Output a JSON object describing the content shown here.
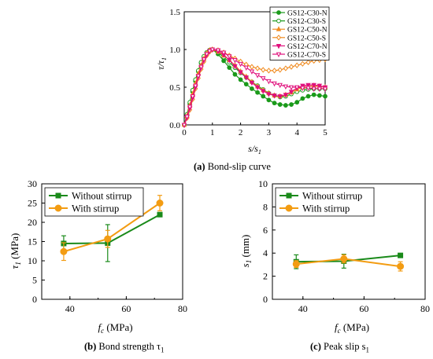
{
  "figure_a": {
    "caption_tag": "(a)",
    "caption_text": "Bond-slip curve"
  },
  "figure_b": {
    "caption_tag": "(b)",
    "caption_text": "Bond strength τ",
    "caption_sub": "1"
  },
  "figure_c": {
    "caption_tag": "(c)",
    "caption_text": "Peak slip s",
    "caption_sub": "1"
  },
  "chart_data": [
    {
      "type": "line",
      "xlabel": "s/s1",
      "ylabel": "τ/τ1",
      "xlim": [
        0,
        5
      ],
      "ylim": [
        0,
        1.5
      ],
      "xticks": [
        "0",
        "1",
        "2",
        "3",
        "4",
        "5"
      ],
      "yticks": [
        "0.0",
        "0.5",
        "1.0",
        "1.5"
      ],
      "legend_position": "top-right",
      "series": [
        {
          "name": "GS12-C30-N",
          "color": "#1a9a1a",
          "marker": "circle-filled",
          "x": [
            0,
            0.1,
            0.2,
            0.3,
            0.4,
            0.5,
            0.6,
            0.7,
            0.8,
            0.9,
            1.0,
            1.2,
            1.4,
            1.6,
            1.8,
            2.0,
            2.2,
            2.4,
            2.6,
            2.8,
            3.0,
            3.2,
            3.4,
            3.6,
            3.8,
            4.0,
            4.2,
            4.4,
            4.6,
            4.8,
            5.0
          ],
          "y": [
            0,
            0.13,
            0.28,
            0.44,
            0.58,
            0.71,
            0.82,
            0.9,
            0.96,
            0.99,
            1.0,
            0.94,
            0.85,
            0.76,
            0.67,
            0.6,
            0.54,
            0.48,
            0.43,
            0.38,
            0.33,
            0.29,
            0.27,
            0.26,
            0.27,
            0.3,
            0.35,
            0.38,
            0.4,
            0.39,
            0.38
          ]
        },
        {
          "name": "GS12-C30-S",
          "color": "#1a9a1a",
          "marker": "circle-open",
          "x": [
            0,
            0.1,
            0.2,
            0.3,
            0.4,
            0.5,
            0.6,
            0.7,
            0.8,
            0.9,
            1.0,
            1.2,
            1.4,
            1.6,
            1.8,
            2.0,
            2.2,
            2.4,
            2.6,
            2.8,
            3.0,
            3.2,
            3.4,
            3.6,
            3.8,
            4.0,
            4.2,
            4.4,
            4.6,
            4.8,
            5.0
          ],
          "y": [
            0,
            0.14,
            0.3,
            0.46,
            0.6,
            0.72,
            0.83,
            0.91,
            0.96,
            0.99,
            1.0,
            0.96,
            0.9,
            0.83,
            0.76,
            0.69,
            0.63,
            0.57,
            0.52,
            0.47,
            0.42,
            0.39,
            0.37,
            0.38,
            0.41,
            0.44,
            0.46,
            0.47,
            0.48,
            0.48,
            0.48
          ]
        },
        {
          "name": "GS12-C50-N",
          "color": "#f08a1e",
          "marker": "triangle-up-filled",
          "x": [
            0,
            0.1,
            0.2,
            0.3,
            0.4,
            0.5,
            0.6,
            0.7,
            0.8,
            0.9,
            1.0,
            1.2,
            1.4,
            1.6,
            1.8,
            2.0,
            2.2,
            2.4,
            2.6,
            2.8,
            3.0,
            3.2,
            3.4,
            3.6,
            3.8,
            4.0,
            4.2,
            4.4,
            4.6,
            4.8,
            5.0
          ],
          "y": [
            0,
            0.12,
            0.26,
            0.41,
            0.55,
            0.68,
            0.79,
            0.88,
            0.95,
            0.99,
            1.0,
            0.97,
            0.92,
            0.86,
            0.79,
            0.71,
            0.64,
            0.57,
            0.51,
            0.46,
            0.42,
            0.39,
            0.38,
            0.4,
            0.43,
            0.47,
            0.5,
            0.51,
            0.52,
            0.51,
            0.5
          ]
        },
        {
          "name": "GS12-C50-S",
          "color": "#f08a1e",
          "marker": "diamond-open",
          "x": [
            0,
            0.1,
            0.2,
            0.3,
            0.4,
            0.5,
            0.6,
            0.7,
            0.8,
            0.9,
            1.0,
            1.2,
            1.4,
            1.6,
            1.8,
            2.0,
            2.2,
            2.4,
            2.6,
            2.8,
            3.0,
            3.2,
            3.4,
            3.6,
            3.8,
            4.0,
            4.2,
            4.4,
            4.6,
            4.8,
            5.0
          ],
          "y": [
            0,
            0.09,
            0.2,
            0.34,
            0.48,
            0.62,
            0.74,
            0.84,
            0.92,
            0.97,
            1.0,
            0.99,
            0.96,
            0.92,
            0.88,
            0.84,
            0.8,
            0.77,
            0.75,
            0.73,
            0.72,
            0.72,
            0.73,
            0.75,
            0.77,
            0.79,
            0.81,
            0.83,
            0.85,
            0.86,
            0.87
          ]
        },
        {
          "name": "GS12-C70-N",
          "color": "#e0107c",
          "marker": "triangle-down-filled",
          "x": [
            0,
            0.1,
            0.2,
            0.3,
            0.4,
            0.5,
            0.6,
            0.7,
            0.8,
            0.9,
            1.0,
            1.2,
            1.4,
            1.6,
            1.8,
            2.0,
            2.2,
            2.4,
            2.6,
            2.8,
            3.0,
            3.2,
            3.4,
            3.6,
            3.8,
            4.0,
            4.2,
            4.4,
            4.6,
            4.8,
            5.0
          ],
          "y": [
            0,
            0.1,
            0.22,
            0.36,
            0.5,
            0.64,
            0.76,
            0.86,
            0.93,
            0.98,
            1.0,
            0.98,
            0.93,
            0.86,
            0.78,
            0.7,
            0.63,
            0.56,
            0.5,
            0.45,
            0.41,
            0.39,
            0.38,
            0.4,
            0.44,
            0.49,
            0.52,
            0.53,
            0.53,
            0.52,
            0.5
          ]
        },
        {
          "name": "GS12-C70-S",
          "color": "#e0107c",
          "marker": "triangle-down-open",
          "x": [
            0,
            0.1,
            0.2,
            0.3,
            0.4,
            0.5,
            0.6,
            0.7,
            0.8,
            0.9,
            1.0,
            1.2,
            1.4,
            1.6,
            1.8,
            2.0,
            2.2,
            2.4,
            2.6,
            2.8,
            3.0,
            3.2,
            3.4,
            3.6,
            3.8,
            4.0,
            4.2,
            4.4,
            4.6,
            4.8,
            5.0
          ],
          "y": [
            0,
            0.11,
            0.24,
            0.38,
            0.52,
            0.65,
            0.77,
            0.87,
            0.94,
            0.98,
            1.0,
            0.99,
            0.96,
            0.91,
            0.86,
            0.81,
            0.76,
            0.71,
            0.66,
            0.62,
            0.58,
            0.55,
            0.53,
            0.51,
            0.5,
            0.5,
            0.49,
            0.49,
            0.48,
            0.48,
            0.48
          ]
        }
      ]
    },
    {
      "type": "line",
      "xlabel": "fc (MPa)",
      "ylabel": "τ1 (MPa)",
      "xlim": [
        30,
        80
      ],
      "ylim": [
        0,
        30
      ],
      "xticks": [
        "40",
        "60",
        "80"
      ],
      "yticks": [
        "0",
        "5",
        "10",
        "15",
        "20",
        "25",
        "30"
      ],
      "legend_position": "top-left",
      "series": [
        {
          "name": "Without stirrup",
          "color": "#1a8a1a",
          "marker": "square",
          "x": [
            37.8,
            53.4,
            71.9
          ],
          "y": [
            14.5,
            14.6,
            22.0
          ],
          "err": [
            2.0,
            4.8,
            0
          ]
        },
        {
          "name": "With stirrup",
          "color": "#f39c12",
          "marker": "circle",
          "x": [
            37.8,
            53.4,
            71.9
          ],
          "y": [
            12.4,
            15.7,
            25.0
          ],
          "err": [
            2.3,
            2.2,
            2.0
          ]
        }
      ]
    },
    {
      "type": "line",
      "xlabel": "fc (MPa)",
      "ylabel": "s1 (mm)",
      "xlim": [
        30,
        80
      ],
      "ylim": [
        0,
        10
      ],
      "xticks": [
        "40",
        "60",
        "80"
      ],
      "yticks": [
        "0",
        "2",
        "4",
        "6",
        "8",
        "10"
      ],
      "legend_position": "top-left",
      "series": [
        {
          "name": "Without stirrup",
          "color": "#1a8a1a",
          "marker": "square",
          "x": [
            37.8,
            53.4,
            71.9
          ],
          "y": [
            3.25,
            3.3,
            3.8
          ],
          "err": [
            0.6,
            0.6,
            0
          ]
        },
        {
          "name": "With stirrup",
          "color": "#f39c12",
          "marker": "circle",
          "x": [
            37.8,
            53.4,
            71.9
          ],
          "y": [
            3.05,
            3.5,
            2.85
          ],
          "err": [
            0.3,
            0.35,
            0.4
          ]
        }
      ]
    }
  ]
}
